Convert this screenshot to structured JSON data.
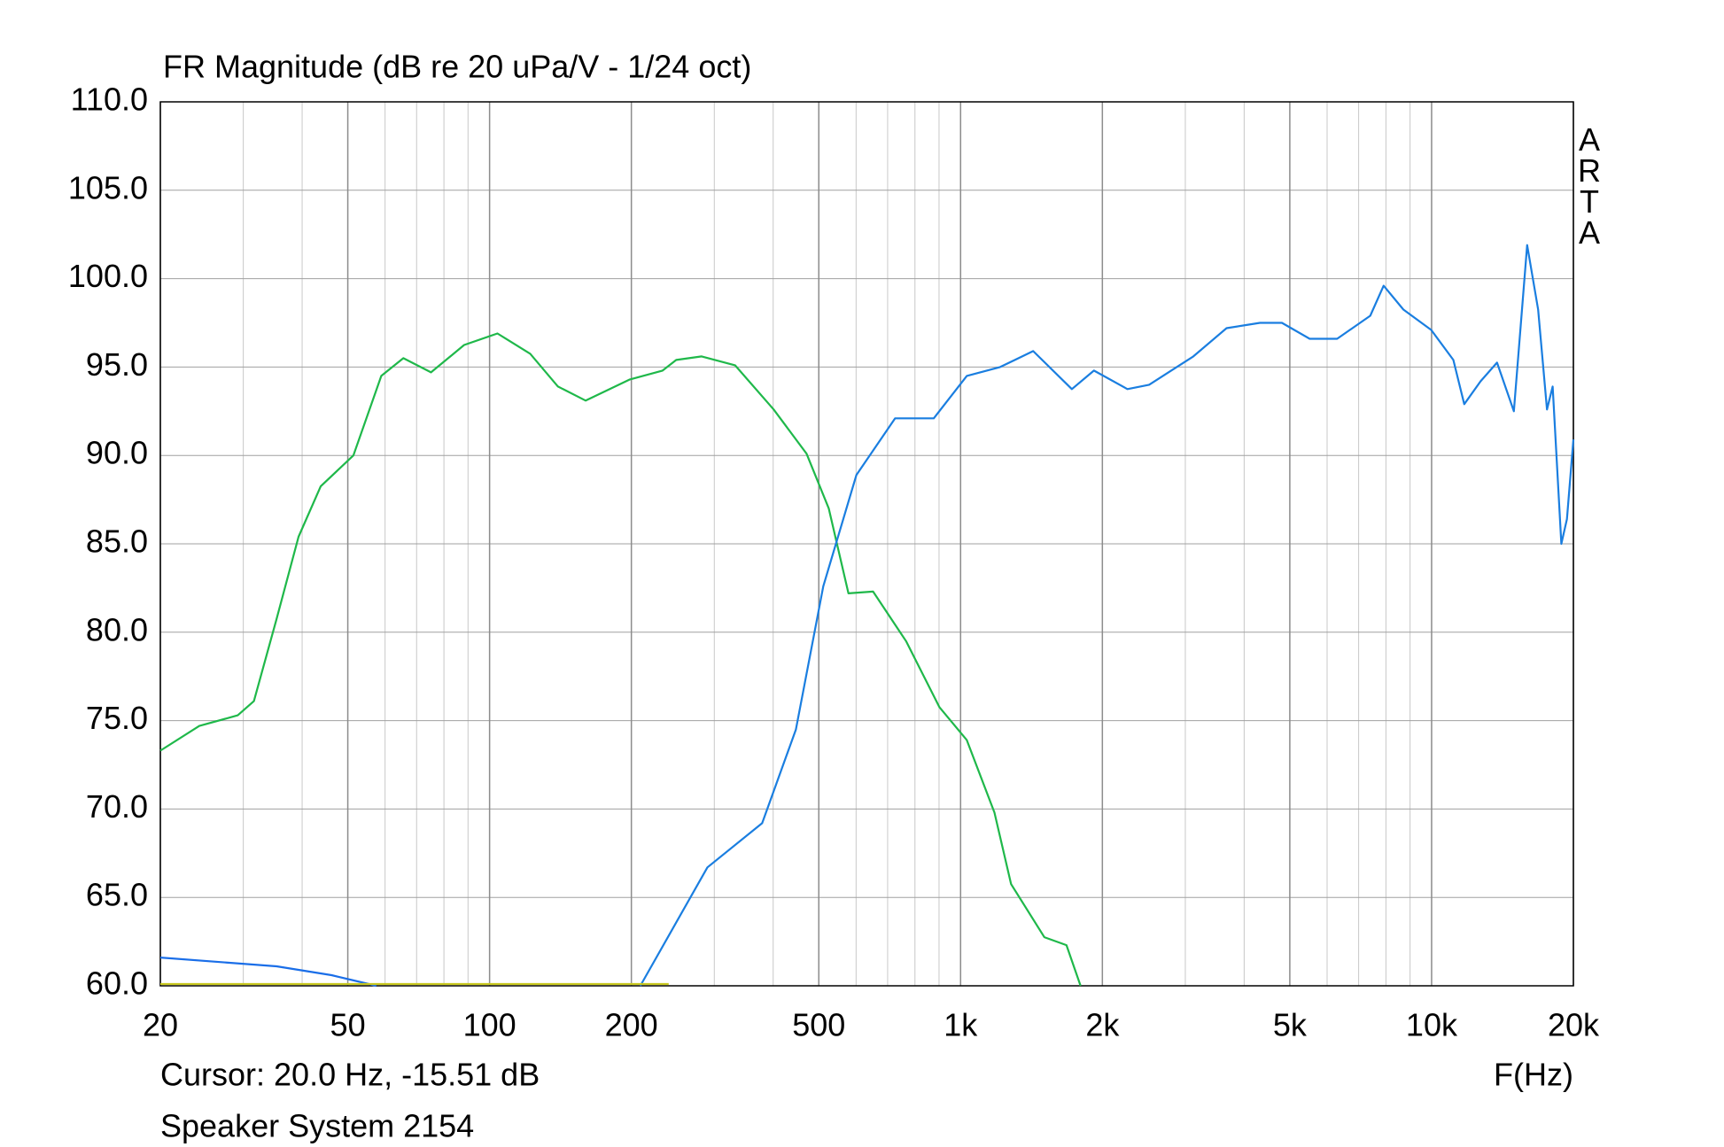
{
  "chart_data": {
    "type": "line",
    "title": "FR Magnitude (dB re 20 uPa/V - 1/24 oct)",
    "x_label": "F(Hz)",
    "cursor": "Cursor: 20.0 Hz, -15.51 dB",
    "caption": "Speaker System 2154",
    "watermark": "ARTA",
    "x_log": true,
    "grid": true,
    "minor_grid": true,
    "xlim": [
      20,
      20000
    ],
    "ylim": [
      60,
      110
    ],
    "xticks": [
      20,
      50,
      100,
      200,
      500,
      {
        "value": 1000,
        "label": "1k"
      },
      {
        "value": 2000,
        "label": "2k"
      },
      {
        "value": 5000,
        "label": "5k"
      },
      {
        "value": 10000,
        "label": "10k"
      },
      {
        "value": 20000,
        "label": "20k"
      }
    ],
    "yticks": [
      {
        "value": 60,
        "label": "60.0"
      },
      {
        "value": 65,
        "label": "65.0"
      },
      {
        "value": 70,
        "label": "70.0"
      },
      {
        "value": 75,
        "label": "75.0"
      },
      {
        "value": 80,
        "label": "80.0"
      },
      {
        "value": 85,
        "label": "85.0"
      },
      {
        "value": 90,
        "label": "90.0"
      },
      {
        "value": 95,
        "label": "95.0"
      },
      {
        "value": 100,
        "label": "100.0"
      },
      {
        "value": 105,
        "label": "105.0"
      },
      {
        "value": 110,
        "label": "110.0"
      }
    ],
    "series": [
      {
        "color": "#1fb84a",
        "x": [
          20,
          24.2,
          29.2,
          31.6,
          35.3,
          39.3,
          43.8,
          51.4,
          58.9,
          65.6,
          75.1,
          88.3,
          103.9,
          122,
          139.7,
          160,
          198.6,
          233,
          249,
          282,
          332,
          401,
          471,
          525,
          578,
          652,
          766,
          902,
          1031,
          1180,
          1280,
          1506,
          1678,
          1798
        ],
        "values": [
          73.3,
          74.7,
          75.3,
          76.1,
          80.75,
          85.4,
          88.25,
          90.0,
          94.5,
          95.5,
          94.7,
          96.25,
          96.9,
          95.75,
          93.9,
          93.1,
          94.3,
          94.8,
          95.4,
          95.6,
          95.1,
          92.6,
          90.1,
          87.0,
          82.2,
          82.3,
          79.5,
          75.75,
          73.9,
          69.8,
          65.75,
          62.75,
          62.3,
          60.0
        ]
      },
      {
        "color": "#1a7ee0",
        "x": [
          209,
          290,
          379,
          447,
          511,
          601,
          726,
          877,
          1031,
          1213,
          1426,
          1723,
          1919,
          2260,
          2514,
          2800,
          3120,
          3670,
          4320,
          4810,
          5510,
          6300,
          7410,
          7910,
          8710,
          9980,
          11120,
          11730,
          12710,
          13770,
          14950,
          15950,
          16830,
          17580,
          18070,
          18860,
          19380,
          20000
        ],
        "values": [
          60.0,
          66.7,
          69.2,
          74.5,
          82.6,
          88.9,
          92.1,
          92.1,
          94.5,
          95.0,
          95.9,
          93.75,
          94.8,
          93.75,
          94.0,
          94.8,
          95.6,
          97.2,
          97.5,
          97.5,
          96.6,
          96.6,
          97.9,
          99.6,
          98.25,
          97.1,
          95.4,
          92.9,
          94.2,
          95.25,
          92.5,
          101.9,
          98.25,
          92.6,
          93.9,
          85.0,
          86.4,
          90.9
        ]
      },
      {
        "color": "#1a6ee8",
        "x": [
          20,
          35.3,
          46.2,
          57.5
        ],
        "values": [
          61.6,
          61.1,
          60.6,
          60.0
        ]
      },
      {
        "color": "#c8c820",
        "x": [
          20,
          240
        ],
        "values": [
          60.1,
          60.1
        ]
      }
    ]
  }
}
